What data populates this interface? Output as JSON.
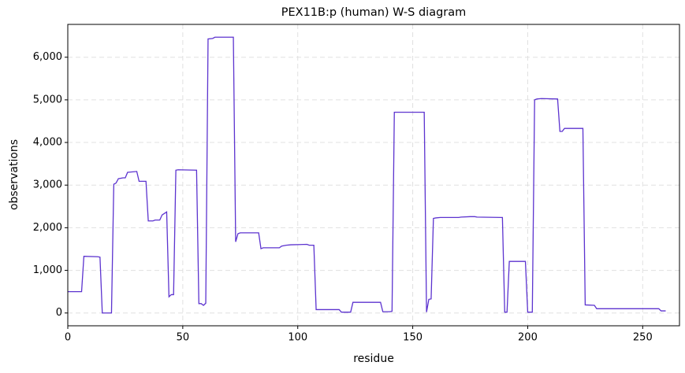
{
  "chart_data": {
    "type": "line",
    "title": "PEX11B:p (human) W-S diagram",
    "x_label": "residue",
    "y_label": "observations",
    "grid": true,
    "xlim": [
      0,
      266
    ],
    "ylim": [
      -300,
      6770
    ],
    "xticks": [
      0,
      50,
      100,
      150,
      200,
      250
    ],
    "yticks": [
      0,
      {
        "value": 1000,
        "label": "1,000"
      },
      {
        "value": 2000,
        "label": "2,000"
      },
      {
        "value": 3000,
        "label": "3,000"
      },
      {
        "value": 4000,
        "label": "4,000"
      },
      {
        "value": 5000,
        "label": "5,000"
      },
      {
        "value": 6000,
        "label": "6,000"
      }
    ],
    "x": [
      0,
      6,
      7,
      13,
      14,
      15,
      19,
      20,
      21,
      22,
      24,
      25,
      26,
      30,
      31,
      34,
      35,
      37,
      38,
      40,
      41,
      43,
      44,
      45,
      46,
      47,
      48,
      56,
      57,
      58,
      59,
      60,
      61,
      63,
      64,
      72,
      73,
      74,
      75,
      83,
      84,
      85,
      92,
      93,
      95,
      97,
      104,
      105,
      107,
      108,
      118,
      119,
      123,
      124,
      136,
      137,
      140,
      141,
      142,
      155,
      156,
      157,
      158,
      159,
      160,
      162,
      170,
      171,
      175,
      177,
      178,
      189,
      190,
      191,
      192,
      199,
      200,
      202,
      203,
      204,
      206,
      213,
      214,
      215,
      216,
      224,
      225,
      229,
      230,
      257,
      258,
      260
    ],
    "series": [
      {
        "name": "observations",
        "color": "#5c33cf",
        "values": [
          500,
          500,
          1330,
          1320,
          1310,
          0,
          0,
          3020,
          3050,
          3150,
          3170,
          3170,
          3300,
          3320,
          3090,
          3090,
          2160,
          2160,
          2180,
          2180,
          2300,
          2370,
          380,
          430,
          430,
          3350,
          3360,
          3350,
          220,
          220,
          180,
          230,
          6430,
          6440,
          6470,
          6470,
          1670,
          1860,
          1880,
          1880,
          1510,
          1530,
          1530,
          1570,
          1590,
          1600,
          1610,
          1590,
          1590,
          80,
          80,
          20,
          20,
          250,
          250,
          30,
          30,
          40,
          4710,
          4710,
          20,
          320,
          330,
          2220,
          2230,
          2240,
          2240,
          2250,
          2260,
          2260,
          2250,
          2240,
          20,
          20,
          1210,
          1210,
          20,
          20,
          5000,
          5020,
          5030,
          5020,
          4260,
          4260,
          4330,
          4330,
          190,
          180,
          100,
          100,
          50,
          50
        ]
      }
    ]
  }
}
